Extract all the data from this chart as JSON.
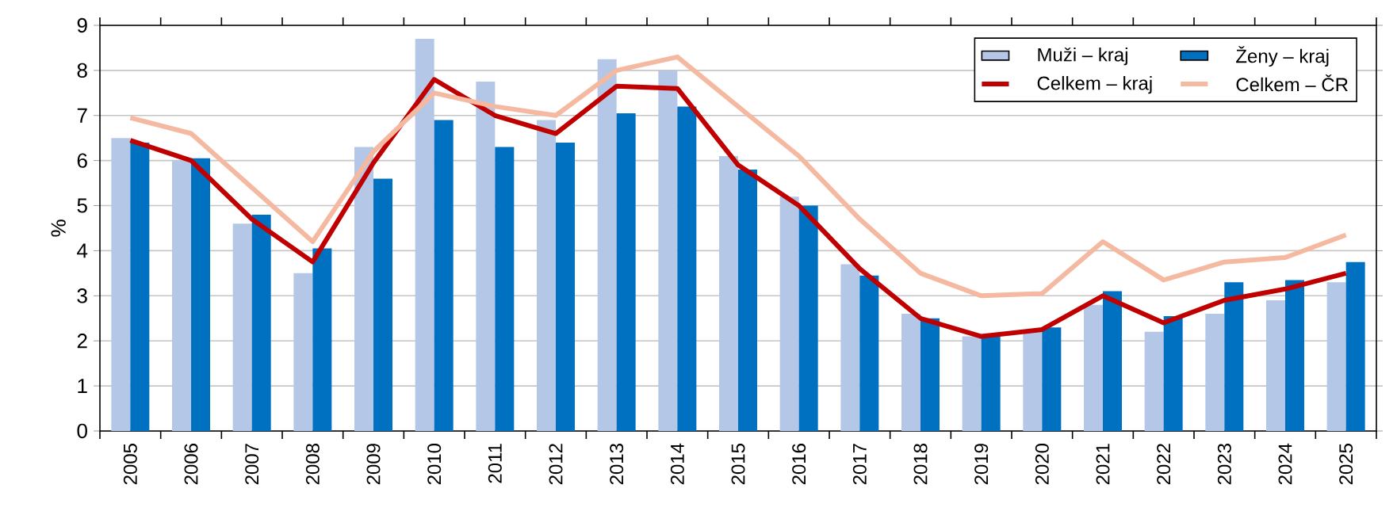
{
  "chart_data": {
    "type": "bar",
    "ylabel": "%",
    "categories": [
      "2005",
      "2006",
      "2007",
      "2008",
      "2009",
      "2010",
      "2011",
      "2012",
      "2013",
      "2014",
      "2015",
      "2016",
      "2017",
      "2018",
      "2019",
      "2020",
      "2021",
      "2022",
      "2023",
      "2024",
      "2025"
    ],
    "series": [
      {
        "name": "Muži – kraj",
        "color": "#b4c7e7",
        "values": [
          6.5,
          6.0,
          4.6,
          3.5,
          6.3,
          8.7,
          7.75,
          6.9,
          8.25,
          8.0,
          6.1,
          5.2,
          3.7,
          2.6,
          2.1,
          2.2,
          2.8,
          2.2,
          2.6,
          2.9,
          3.3
        ]
      },
      {
        "name": "Ženy – kraj",
        "color": "#0070c0",
        "values": [
          6.4,
          6.05,
          4.8,
          4.05,
          5.6,
          6.9,
          6.3,
          6.4,
          7.05,
          7.2,
          5.8,
          5.0,
          3.45,
          2.5,
          2.1,
          2.3,
          3.1,
          2.55,
          3.3,
          3.35,
          3.75
        ]
      },
      {
        "name": "Celkem – kraj",
        "type": "line",
        "color": "#c00000",
        "values": [
          6.45,
          6.0,
          4.7,
          3.75,
          5.95,
          7.8,
          7.0,
          6.6,
          7.65,
          7.6,
          5.9,
          5.0,
          3.6,
          2.5,
          2.1,
          2.25,
          3.0,
          2.4,
          2.9,
          3.15,
          3.5
        ]
      },
      {
        "name": "Celkem – ČR",
        "type": "line",
        "color": "#f4b9a0",
        "values": [
          6.95,
          6.6,
          5.4,
          4.2,
          6.2,
          7.5,
          7.2,
          7.0,
          8.0,
          8.3,
          7.2,
          6.1,
          4.7,
          3.5,
          3.0,
          3.05,
          4.2,
          3.35,
          3.75,
          3.85,
          4.35
        ]
      }
    ],
    "ylim": [
      0,
      9
    ],
    "yticks": [
      0,
      1,
      2,
      3,
      4,
      5,
      6,
      7,
      8,
      9
    ],
    "grid": "y",
    "legend": "top right",
    "marker": "none",
    "line_style": "solid"
  }
}
